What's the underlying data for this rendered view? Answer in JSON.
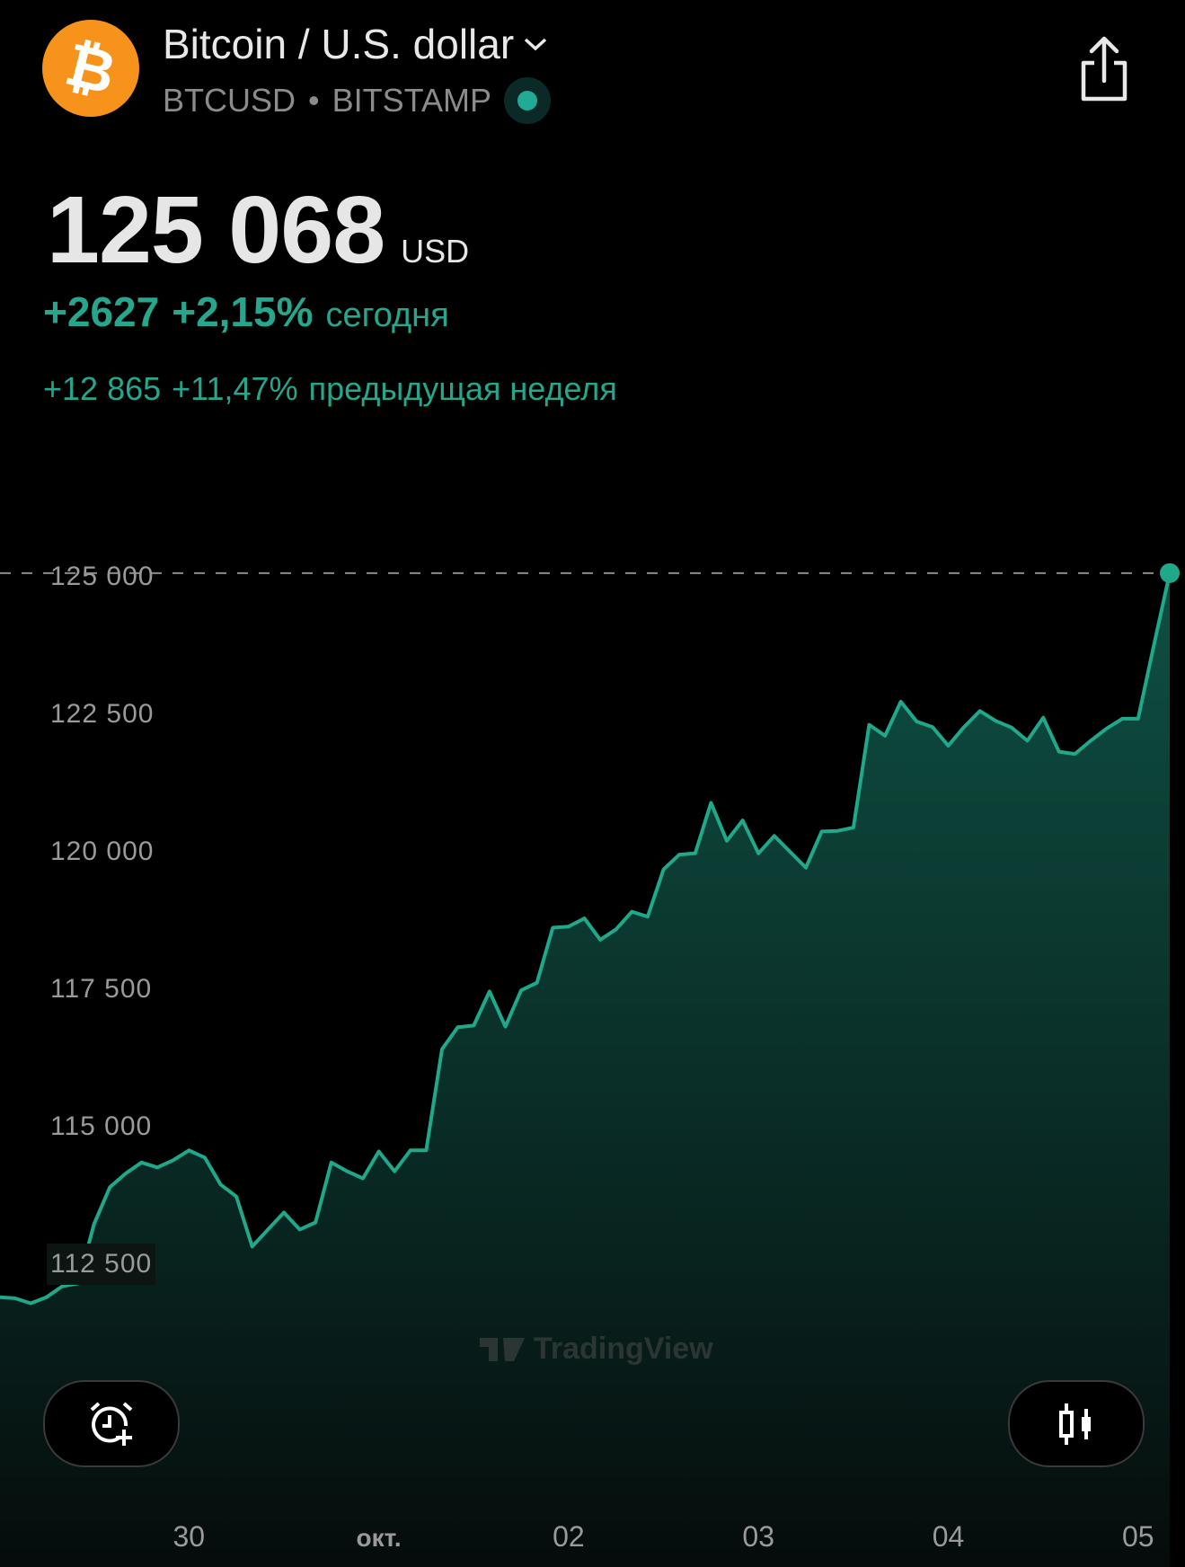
{
  "header": {
    "logo_glyph": "₿",
    "title": "Bitcoin / U.S. dollar",
    "symbol": "BTCUSD",
    "separator": "•",
    "exchange": "BITSTAMP",
    "market_status_color": "#22ab94"
  },
  "quote": {
    "price": "125 068",
    "currency": "USD",
    "day_change_abs": "+2627",
    "day_change_pct": "+2,15%",
    "day_change_label": "сегодня",
    "week_change_abs": "+12 865",
    "week_change_pct": "+11,47%",
    "week_change_label": "предыдущая неделя"
  },
  "buttons": {
    "alert_icon": "alarm-clock-plus-icon",
    "chart_type_icon": "candlestick-icon",
    "share_icon": "share-icon"
  },
  "watermark": "TradingView",
  "chart_data": {
    "type": "area",
    "line_color": "#1fa88a",
    "grid": false,
    "last_price_line": 125068,
    "ylim": [
      111000,
      125600
    ],
    "y_ticks": [
      125000,
      122500,
      120000,
      117500,
      115000,
      112500
    ],
    "y_tick_labels": [
      "125 000",
      "122 500",
      "120 000",
      "117 500",
      "115 000",
      "112 500"
    ],
    "x_ticks": [
      {
        "date": "2025-09-30T00:00",
        "label": "30"
      },
      {
        "date": "2025-10-01T00:00",
        "label": "окт."
      },
      {
        "date": "2025-10-02T00:00",
        "label": "02"
      },
      {
        "date": "2025-10-03T00:00",
        "label": "03"
      },
      {
        "date": "2025-10-04T00:00",
        "label": "04"
      },
      {
        "date": "2025-10-05T00:00",
        "label": "05"
      }
    ],
    "x_start": "2025-09-29T00:00",
    "x_step_hours": 2,
    "values": [
      111900,
      111880,
      111790,
      111900,
      112100,
      112150,
      113230,
      113900,
      114150,
      114350,
      114260,
      114390,
      114570,
      114440,
      113950,
      113730,
      112820,
      113130,
      113440,
      113130,
      113260,
      114350,
      114190,
      114060,
      114550,
      114190,
      114570,
      114570,
      116410,
      116810,
      116840,
      117460,
      116820,
      117480,
      117620,
      118620,
      118640,
      118790,
      118400,
      118590,
      118910,
      118820,
      119680,
      119950,
      119970,
      120890,
      120200,
      120570,
      119970,
      120290,
      120000,
      119710,
      120370,
      120380,
      120440,
      122310,
      122110,
      122730,
      122370,
      122270,
      121930,
      122270,
      122560,
      122380,
      122260,
      122020,
      122440,
      121820,
      121780,
      122020,
      122240,
      122420,
      122420,
      123760,
      125068
    ]
  }
}
